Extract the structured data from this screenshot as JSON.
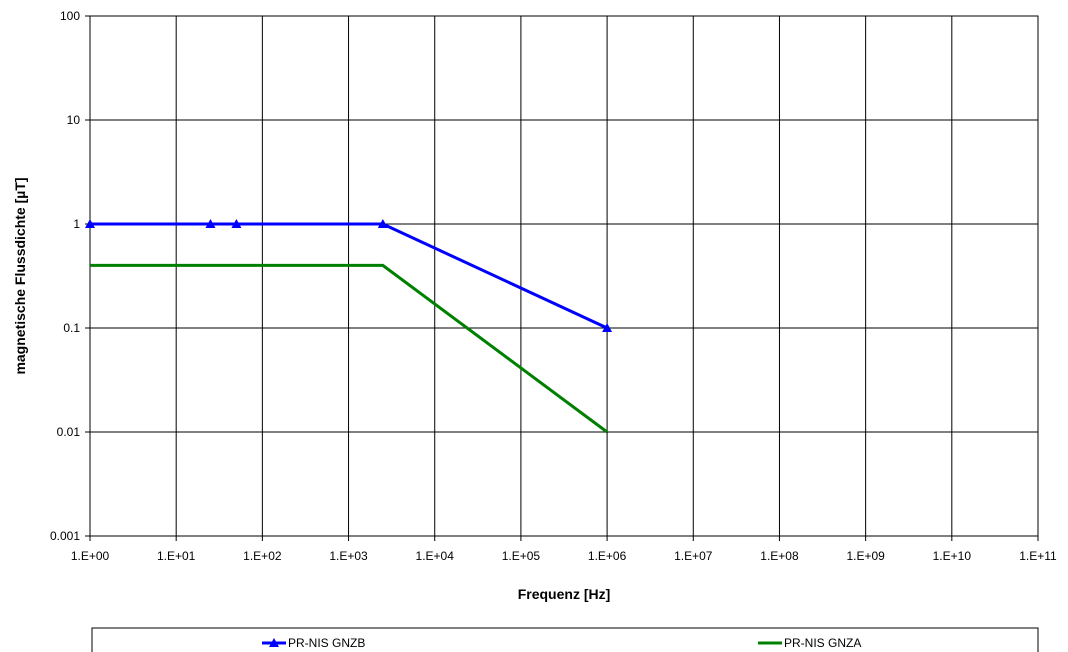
{
  "chart_data": {
    "type": "line",
    "title": "",
    "xlabel": "Frequenz [Hz]",
    "ylabel": "magnetische Flussdichte [µT]",
    "xscale": "log",
    "yscale": "log",
    "xlim": [
      1,
      100000000000
    ],
    "ylim": [
      0.001,
      100
    ],
    "grid": true,
    "legend_position": "bottom",
    "x_tick_labels": [
      "1.E+00",
      "1.E+01",
      "1.E+02",
      "1.E+03",
      "1.E+04",
      "1.E+05",
      "1.E+06",
      "1.E+07",
      "1.E+08",
      "1.E+09",
      "1.E+10",
      "1.E+11"
    ],
    "y_tick_labels": [
      "0.001",
      "0.01",
      "0.1",
      "1",
      "10",
      "100"
    ],
    "series": [
      {
        "name": "PR-NIS GNZB",
        "color": "#0000ff",
        "marker": "triangle",
        "x": [
          1,
          25,
          50,
          2500,
          1000000
        ],
        "y": [
          1,
          1,
          1,
          1,
          0.1
        ]
      },
      {
        "name": "PR-NIS GNZA",
        "color": "#008000",
        "marker": "none",
        "x": [
          1,
          2500,
          1000000
        ],
        "y": [
          0.4,
          0.4,
          0.01
        ]
      }
    ]
  }
}
